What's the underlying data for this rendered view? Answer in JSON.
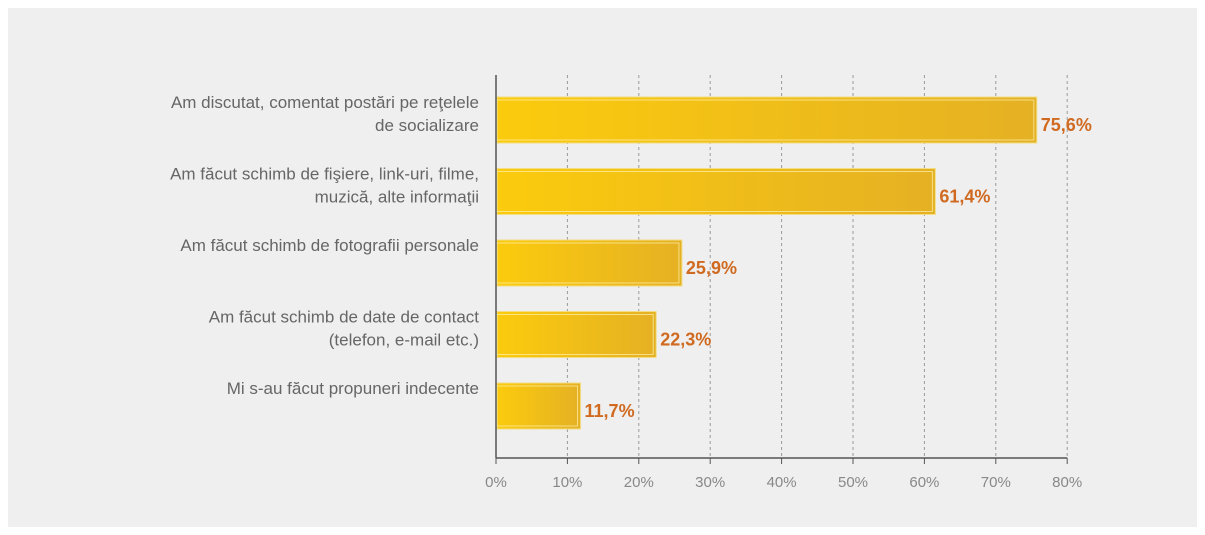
{
  "chart_data": {
    "type": "bar",
    "orientation": "horizontal",
    "categories": [
      [
        "Am discutat, comentat postări pe reţelele",
        "de socializare"
      ],
      [
        "Am făcut schimb de fişiere, link-uri, filme,",
        "muzică, alte informaţii"
      ],
      [
        "Am făcut schimb de fotografii personale"
      ],
      [
        "Am făcut schimb de date de contact",
        "(telefon, e-mail etc.)"
      ],
      [
        "Mi s-au făcut propuneri indecente"
      ]
    ],
    "values": [
      75.6,
      61.4,
      25.9,
      22.3,
      11.7
    ],
    "value_labels": [
      "75,6%",
      "61,4%",
      "25,9%",
      "22,3%",
      "11,7%"
    ],
    "xticks": [
      "0%",
      "10%",
      "20%",
      "30%",
      "40%",
      "50%",
      "60%",
      "70%",
      "80%"
    ],
    "xlim": [
      0,
      80
    ],
    "grid": "vertical dashed",
    "legend": "none",
    "colors": {
      "bar_light": "#f9c811",
      "bar_dark": "#e5b020",
      "label": "#d06a20",
      "panel": "#efefef"
    }
  }
}
